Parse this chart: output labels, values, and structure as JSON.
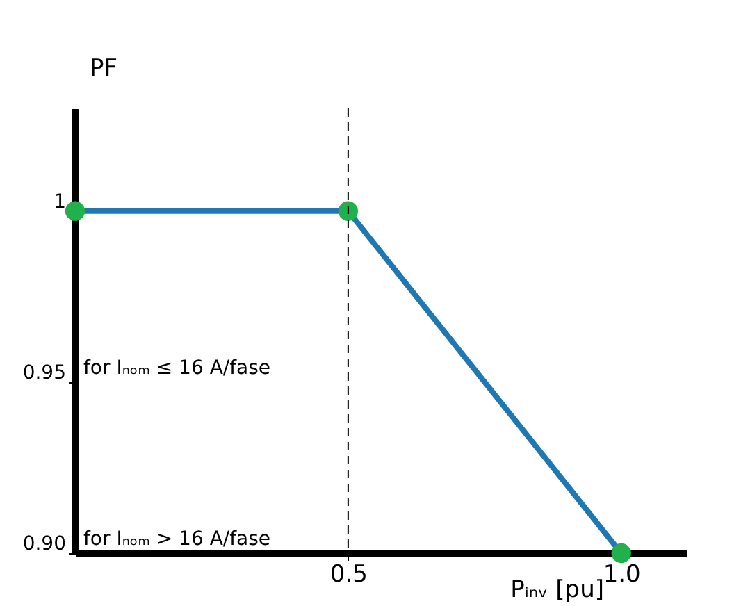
{
  "chart_data": {
    "type": "line",
    "xlabel": "Pᵢₙᵥ [pu]",
    "ylabel": "PF",
    "x": [
      0,
      0.5,
      1.0
    ],
    "series": [
      {
        "color": "#1f77b4",
        "values": [
          1,
          1,
          0.9
        ]
      }
    ],
    "xlim": [
      0,
      1.12
    ],
    "xticks": [
      0.5,
      {
        "value": 1.0,
        "label": "1.0"
      }
    ],
    "ylim": [
      0.9,
      1.03
    ],
    "yticks": [
      1,
      0.95,
      {
        "value": 0.9,
        "label": "0.90"
      }
    ],
    "annotations": [
      "for Iₙₒₘ > 16 A/fase",
      "for Iₙₒₘ ≤ 16 A/fase"
    ],
    "ref_lines": [
      {
        "axis": "x",
        "value": 0.5,
        "color": "#000000",
        "line_style": "dashed"
      }
    ],
    "marker": "circle",
    "line_style": "solid",
    "grid": false
  }
}
